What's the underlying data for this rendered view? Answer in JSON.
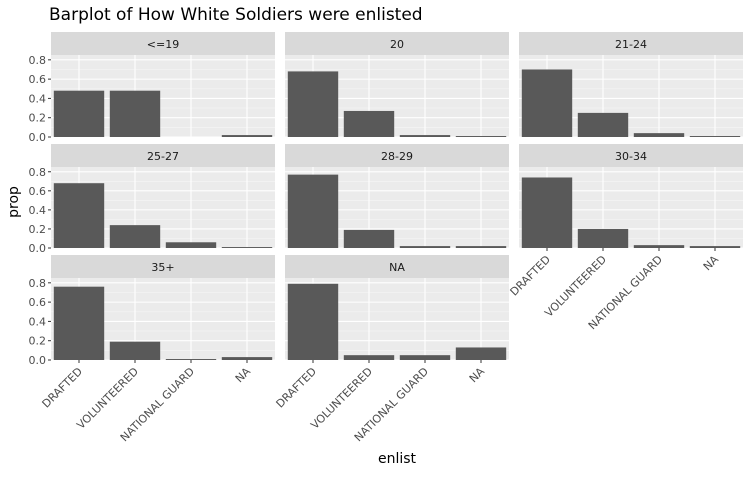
{
  "chart_data": {
    "type": "bar",
    "title": "Barplot of How White Soldiers were enlisted",
    "xlabel": "enlist",
    "ylabel": "prop",
    "categories": [
      "DRAFTED",
      "VOLUNTEERED",
      "NATIONAL GUARD",
      "NA"
    ],
    "ylim": [
      0,
      0.85
    ],
    "yticks": [
      "0.0",
      "0.2",
      "0.4",
      "0.6",
      "0.8"
    ],
    "grid": true,
    "facets": [
      {
        "label": "<=19",
        "values": [
          0.48,
          0.48,
          0.0,
          0.02
        ]
      },
      {
        "label": "20",
        "values": [
          0.68,
          0.27,
          0.02,
          0.01
        ]
      },
      {
        "label": "21-24",
        "values": [
          0.7,
          0.25,
          0.04,
          0.01
        ]
      },
      {
        "label": "25-27",
        "values": [
          0.68,
          0.24,
          0.06,
          0.01
        ]
      },
      {
        "label": "28-29",
        "values": [
          0.77,
          0.19,
          0.02,
          0.02
        ]
      },
      {
        "label": "30-34",
        "values": [
          0.74,
          0.2,
          0.03,
          0.02
        ]
      },
      {
        "label": "35+",
        "values": [
          0.76,
          0.19,
          0.01,
          0.03
        ]
      },
      {
        "label": "NA",
        "values": [
          0.79,
          0.05,
          0.05,
          0.13
        ]
      }
    ],
    "colors": {
      "bar": "#595959",
      "panel": "#ebebeb",
      "strip": "#d9d9d9",
      "grid_major": "#ffffff",
      "text": "#4d4d4d",
      "title": "#000000"
    }
  }
}
